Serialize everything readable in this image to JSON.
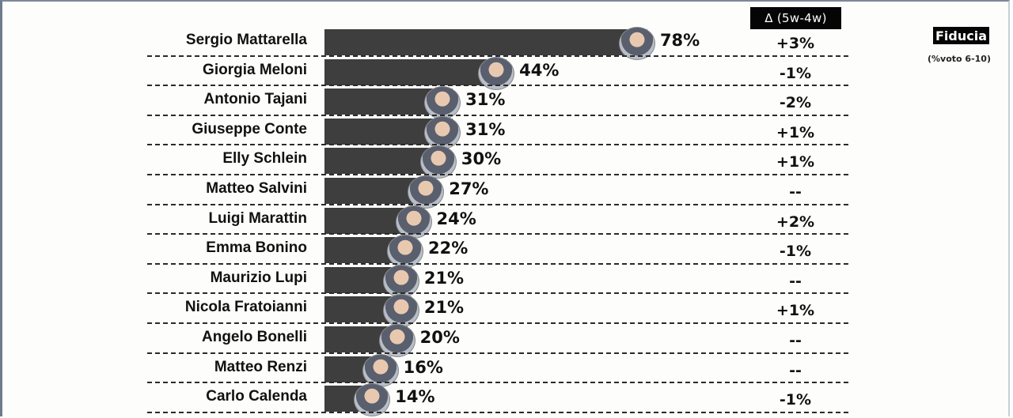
{
  "header": {
    "delta_label": "Δ (5w-4w)",
    "fiducia_label": "Fiducia",
    "fiducia_sub": "(%voto 6-10)"
  },
  "chart_data": {
    "type": "bar",
    "orientation": "horizontal",
    "title": "Fiducia",
    "subtitle": "(%voto 6-10)",
    "xlabel": "",
    "ylabel": "",
    "categories": [
      "Sergio Mattarella",
      "Giorgia Meloni",
      "Antonio Tajani",
      "Giuseppe Conte",
      "Elly Schlein",
      "Matteo Salvini",
      "Luigi Marattin",
      "Emma Bonino",
      "Maurizio Lupi",
      "Nicola Fratoianni",
      "Angelo Bonelli",
      "Matteo Renzi",
      "Carlo Calenda"
    ],
    "series": [
      {
        "name": "Fiducia (%)",
        "values": [
          78,
          44,
          31,
          31,
          30,
          27,
          24,
          22,
          21,
          21,
          20,
          16,
          14
        ]
      },
      {
        "name": "Δ (5w-4w)",
        "values": [
          "+3%",
          "-1%",
          "-2%",
          "+1%",
          "+1%",
          "--",
          "+2%",
          "-1%",
          "--",
          "+1%",
          "--",
          "--",
          "-1%"
        ]
      }
    ],
    "bar_color": "#3e3e3e",
    "grid": false
  },
  "rows": [
    {
      "name": "Sergio Mattarella",
      "pct": "78%",
      "value": 78,
      "delta": "+3%"
    },
    {
      "name": "Giorgia Meloni",
      "pct": "44%",
      "value": 44,
      "delta": "-1%"
    },
    {
      "name": "Antonio Tajani",
      "pct": "31%",
      "value": 31,
      "delta": "-2%"
    },
    {
      "name": "Giuseppe Conte",
      "pct": "31%",
      "value": 31,
      "delta": "+1%"
    },
    {
      "name": "Elly Schlein",
      "pct": "30%",
      "value": 30,
      "delta": "+1%"
    },
    {
      "name": "Matteo Salvini",
      "pct": "27%",
      "value": 27,
      "delta": "--"
    },
    {
      "name": "Luigi Marattin",
      "pct": "24%",
      "value": 24,
      "delta": "+2%"
    },
    {
      "name": "Emma Bonino",
      "pct": "22%",
      "value": 22,
      "delta": "-1%"
    },
    {
      "name": "Maurizio Lupi",
      "pct": "21%",
      "value": 21,
      "delta": "--"
    },
    {
      "name": "Nicola Fratoianni",
      "pct": "21%",
      "value": 21,
      "delta": "+1%"
    },
    {
      "name": "Angelo Bonelli",
      "pct": "20%",
      "value": 20,
      "delta": "--"
    },
    {
      "name": "Matteo Renzi",
      "pct": "16%",
      "value": 16,
      "delta": "--"
    },
    {
      "name": "Carlo Calenda",
      "pct": "14%",
      "value": 14,
      "delta": "-1%"
    }
  ]
}
